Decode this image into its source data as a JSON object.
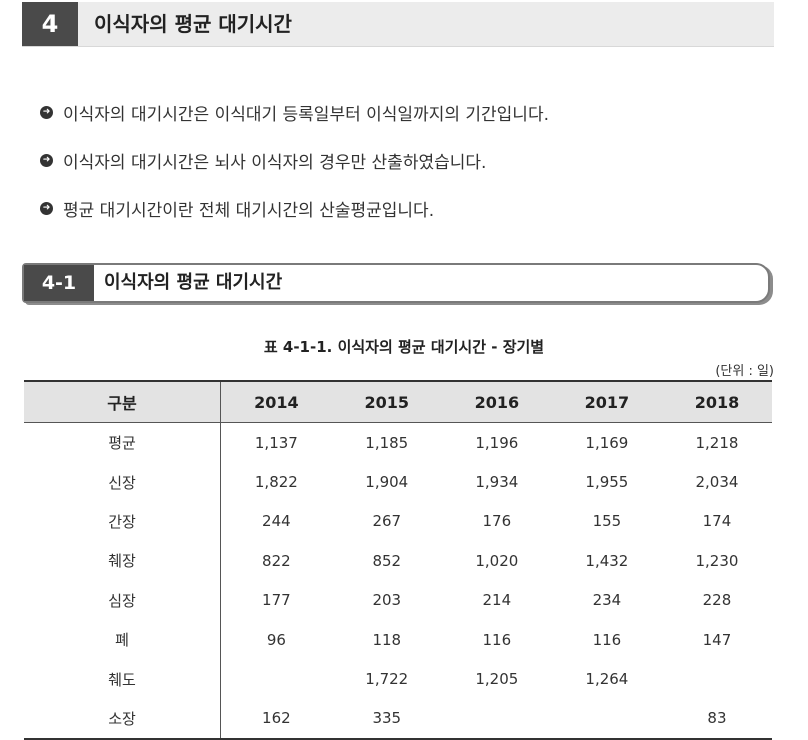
{
  "section": {
    "number": "4",
    "title": "이식자의 평균 대기시간"
  },
  "bullets": [
    "이식자의 대기시간은 이식대기 등록일부터 이식일까지의 기간입니다.",
    "이식자의 대기시간은 뇌사 이식자의 경우만 산출하였습니다.",
    "평균 대기시간이란 전체 대기시간의 산술평균입니다."
  ],
  "subsection": {
    "number": "4-1",
    "title": "이식자의 평균 대기시간"
  },
  "table": {
    "caption": "표 4-1-1. 이식자의 평균 대기시간 - 장기별",
    "unit": "(단위 : 일)",
    "headers": [
      "구분",
      "2014",
      "2015",
      "2016",
      "2017",
      "2018"
    ],
    "rows": [
      [
        "평균",
        "1,137",
        "1,185",
        "1,196",
        "1,169",
        "1,218"
      ],
      [
        "신장",
        "1,822",
        "1,904",
        "1,934",
        "1,955",
        "2,034"
      ],
      [
        "간장",
        "244",
        "267",
        "176",
        "155",
        "174"
      ],
      [
        "췌장",
        "822",
        "852",
        "1,020",
        "1,432",
        "1,230"
      ],
      [
        "심장",
        "177",
        "203",
        "214",
        "234",
        "228"
      ],
      [
        "폐",
        "96",
        "118",
        "116",
        "116",
        "147"
      ],
      [
        "췌도",
        "",
        "1,722",
        "1,205",
        "1,264",
        ""
      ],
      [
        "소장",
        "162",
        "335",
        "",
        "",
        "83"
      ]
    ]
  }
}
